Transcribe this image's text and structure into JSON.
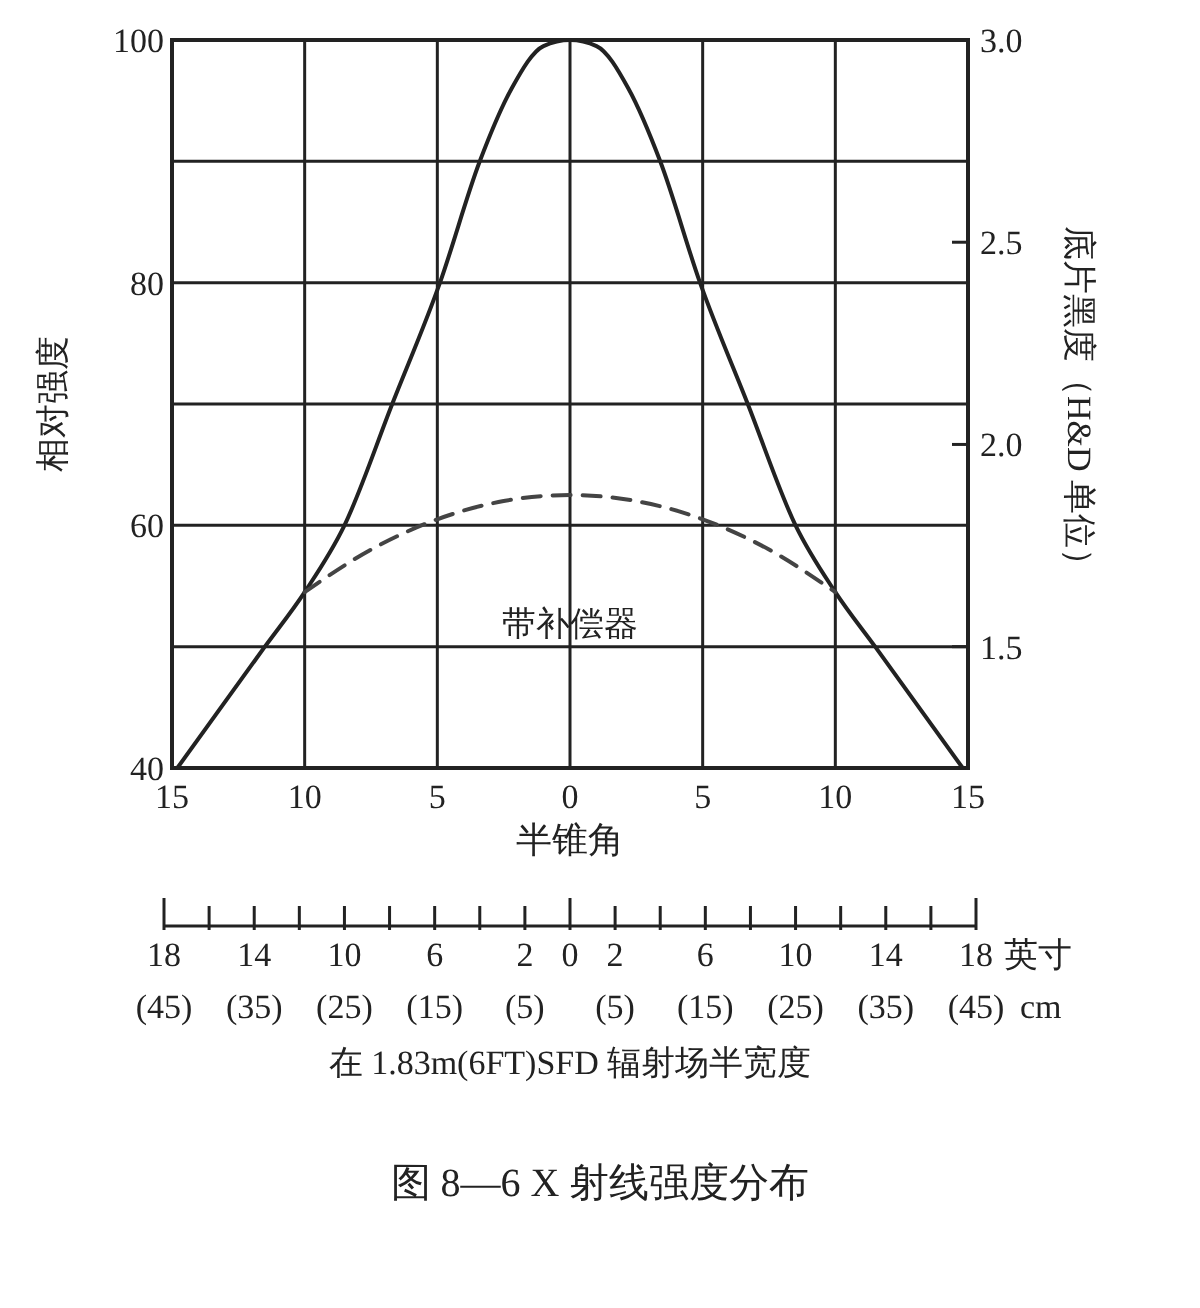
{
  "chart_data": {
    "type": "line",
    "title": "图 8—6 X 射线强度分布",
    "xlabel": "半锥角",
    "ylabel": "相对强度",
    "y2label": "底片黑度（H&D 单位）",
    "x2label": "在 1.83m(6FT)SFD 辐射场半宽度",
    "xlim": [
      -15,
      15
    ],
    "xticks": [
      {
        "value": -15,
        "label": "15"
      },
      {
        "value": -10,
        "label": "10"
      },
      {
        "value": -5,
        "label": "5"
      },
      0,
      5,
      10,
      15
    ],
    "ylim": [
      40,
      100
    ],
    "yticks": [
      40,
      {
        "value": 50,
        "label": null
      },
      60,
      {
        "value": 70,
        "label": null
      },
      80,
      {
        "value": 90,
        "label": null
      },
      100
    ],
    "y2lim": [
      1.2,
      3.0
    ],
    "y2ticks": [
      {
        "value": 3.0,
        "label": "3.0"
      },
      2.5,
      {
        "value": 2.0,
        "label": "2.0"
      },
      1.5
    ],
    "x2lim": [
      -18,
      18
    ],
    "x2ticks": [
      {
        "value": -18,
        "label": "18"
      },
      {
        "value": -14,
        "label": "14"
      },
      {
        "value": -10,
        "label": "10"
      },
      {
        "value": -6,
        "label": "6"
      },
      {
        "value": -2,
        "label": "2"
      },
      0,
      {
        "value": 2,
        "label": "2"
      },
      {
        "value": 6,
        "label": "6"
      },
      {
        "value": 10,
        "label": "10"
      },
      {
        "value": 14,
        "label": "14"
      },
      {
        "value": 18,
        "label": "18"
      }
    ],
    "grid": true,
    "annotations": [
      "英寸",
      "cm",
      "(45)",
      "(35)",
      "(25)",
      "(15)",
      "(5)",
      "(5)",
      "(15)",
      "(25)",
      "(35)",
      "(45)"
    ],
    "series": [
      {
        "color": "#222222",
        "line_style": "solid",
        "x": [
          -14.8,
          -11.5,
          -10,
          -8.5,
          -6.7,
          -4.9,
          -3.4,
          -2.2,
          -1,
          0,
          1,
          2.2,
          3.4,
          4.9,
          6.7,
          8.5,
          10,
          11.5,
          14.8
        ],
        "values": [
          40,
          50,
          54.5,
          60,
          70,
          80,
          90,
          96,
          99.5,
          100,
          99.5,
          96,
          90,
          80,
          70,
          60,
          54.5,
          50,
          40
        ]
      },
      {
        "name": "带补偿器",
        "color": "#444444",
        "line_style": "dashed",
        "x": [
          -10,
          -7.5,
          -5,
          -2.5,
          0,
          2.5,
          5,
          7.5,
          10
        ],
        "values": [
          54.5,
          58,
          60.5,
          62,
          62.5,
          62,
          60.5,
          58,
          54.5
        ]
      }
    ]
  }
}
